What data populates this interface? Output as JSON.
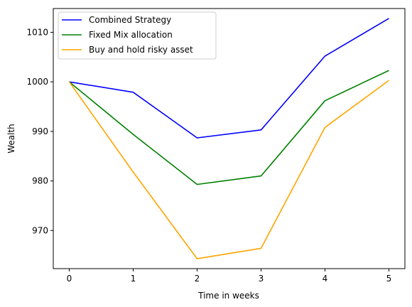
{
  "chart_data": {
    "type": "line",
    "xlabel": "Time in weeks",
    "ylabel": "Wealth",
    "x": [
      0,
      1,
      2,
      3,
      4,
      5
    ],
    "xlim": [
      -0.25,
      5.25
    ],
    "ylim": [
      962.3,
      1014.8
    ],
    "xticks": [
      0,
      1,
      2,
      3,
      4,
      5
    ],
    "yticks": [
      970,
      980,
      990,
      1000,
      1010
    ],
    "grid": false,
    "legend_position": "top-left",
    "series": [
      {
        "name": "Combined Strategy",
        "color": "#0000ff",
        "values": [
          1000,
          997.9,
          988.7,
          990.3,
          1005.2,
          1012.8
        ]
      },
      {
        "name": "Fixed Mix allocation",
        "color": "#008000",
        "values": [
          1000,
          989.4,
          979.3,
          981.0,
          996.2,
          1002.3
        ]
      },
      {
        "name": "Buy and hold risky asset",
        "color": "#ffa500",
        "values": [
          1000,
          981.8,
          964.3,
          966.4,
          990.8,
          1000.3
        ]
      }
    ]
  }
}
